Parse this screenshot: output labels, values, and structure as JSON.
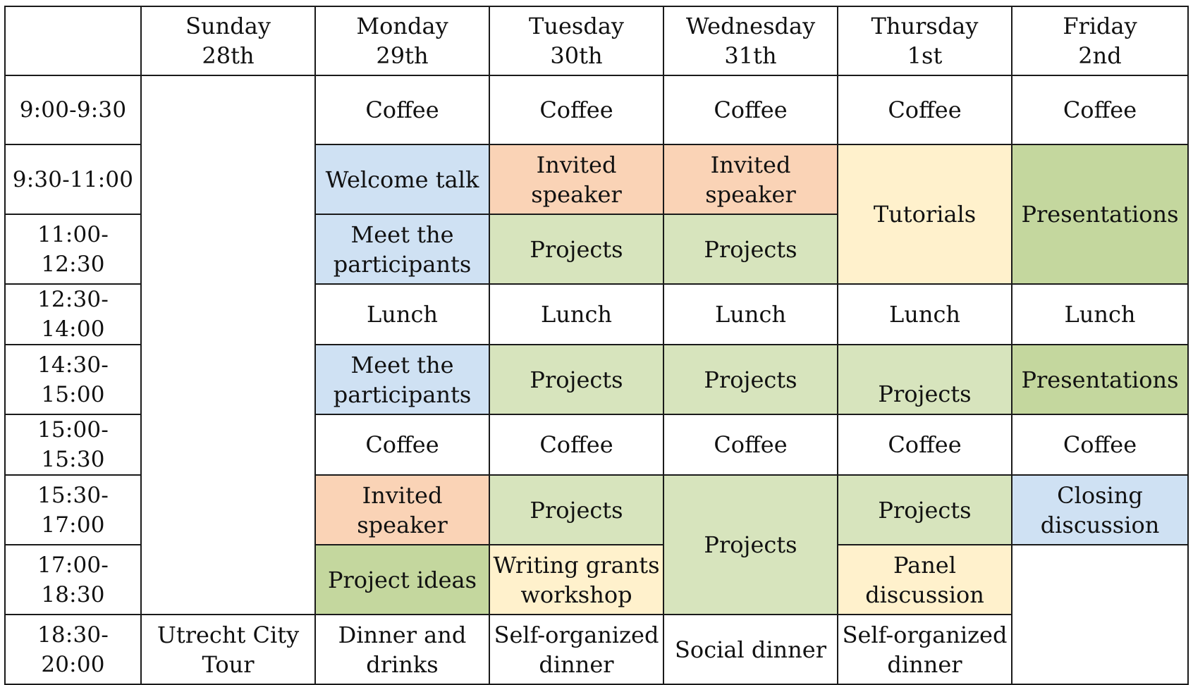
{
  "colors": {
    "meeting": "#cfe1f3",
    "invited": "#fad3b6",
    "projects": "#d7e4bd",
    "presentations": "#c4d79e",
    "workshop": "#fff1cc"
  },
  "days": [
    {
      "day": "Sunday",
      "date": "28th"
    },
    {
      "day": "Monday",
      "date": "29th"
    },
    {
      "day": "Tuesday",
      "date": "30th"
    },
    {
      "day": "Wednesday",
      "date": "31th"
    },
    {
      "day": "Thursday",
      "date": "1st"
    },
    {
      "day": "Friday",
      "date": "2nd"
    }
  ],
  "times": [
    "9:00-9:30",
    "9:30-11:00",
    "11:00-12:30",
    "12:30-14:00",
    "14:30-15:00",
    "15:00-15:30",
    "15:30-17:00",
    "17:00-18:30",
    "18:30-20:00"
  ],
  "events": {
    "coffee": "Coffee",
    "lunch": "Lunch",
    "welcome_talk": "Welcome talk",
    "invited_speaker": "Invited\nspeaker",
    "tutorials": "Tutorials",
    "presentations": "Presentations",
    "meet_participants": "Meet the\nparticipants",
    "projects": "Projects",
    "closing_discussion": "Closing\ndiscussion",
    "project_ideas": "Project ideas",
    "writing_grants": "Writing grants\nworkshop",
    "panel_discussion": "Panel\ndiscussion",
    "utrecht_tour": "Utrecht City\nTour",
    "dinner_drinks": "Dinner and\ndrinks",
    "self_organized_dinner": "Self-organized\ndinner",
    "social_dinner": "Social dinner"
  }
}
